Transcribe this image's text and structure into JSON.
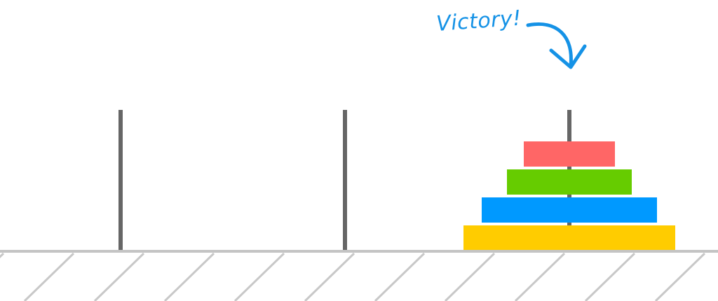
{
  "game": {
    "message": "Victory!",
    "disk_count": 4,
    "pegs": [
      {
        "id": "left",
        "disks": []
      },
      {
        "id": "middle",
        "disks": []
      },
      {
        "id": "right",
        "disks": [
          4,
          3,
          2,
          1
        ]
      }
    ]
  },
  "colors": {
    "background": "#ffffff",
    "peg": "#666666",
    "ground_line": "#c4c4c4",
    "ground_hatch": "#c8c8c8",
    "message": "#1592e6",
    "disks": {
      "1": "#ff6666",
      "2": "#66cc00",
      "3": "#0099ff",
      "4": "#ffcc00"
    }
  }
}
